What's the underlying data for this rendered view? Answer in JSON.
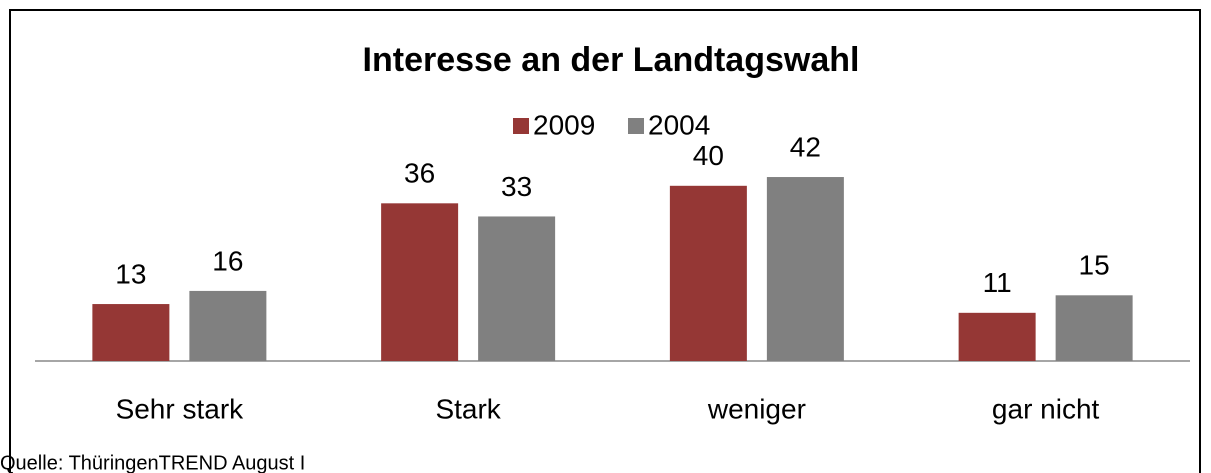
{
  "chart_data": {
    "type": "bar",
    "title": "Interesse an der Landtagswahl",
    "categories": [
      "Sehr stark",
      "Stark",
      "weniger",
      "gar nicht"
    ],
    "series": [
      {
        "name": "2009",
        "color": "#953735",
        "values": [
          13,
          36,
          40,
          11
        ]
      },
      {
        "name": "2004",
        "color": "#808080",
        "values": [
          16,
          33,
          42,
          15
        ]
      }
    ],
    "legend": "top",
    "source": "Quelle: ThüringenTREND August I"
  }
}
